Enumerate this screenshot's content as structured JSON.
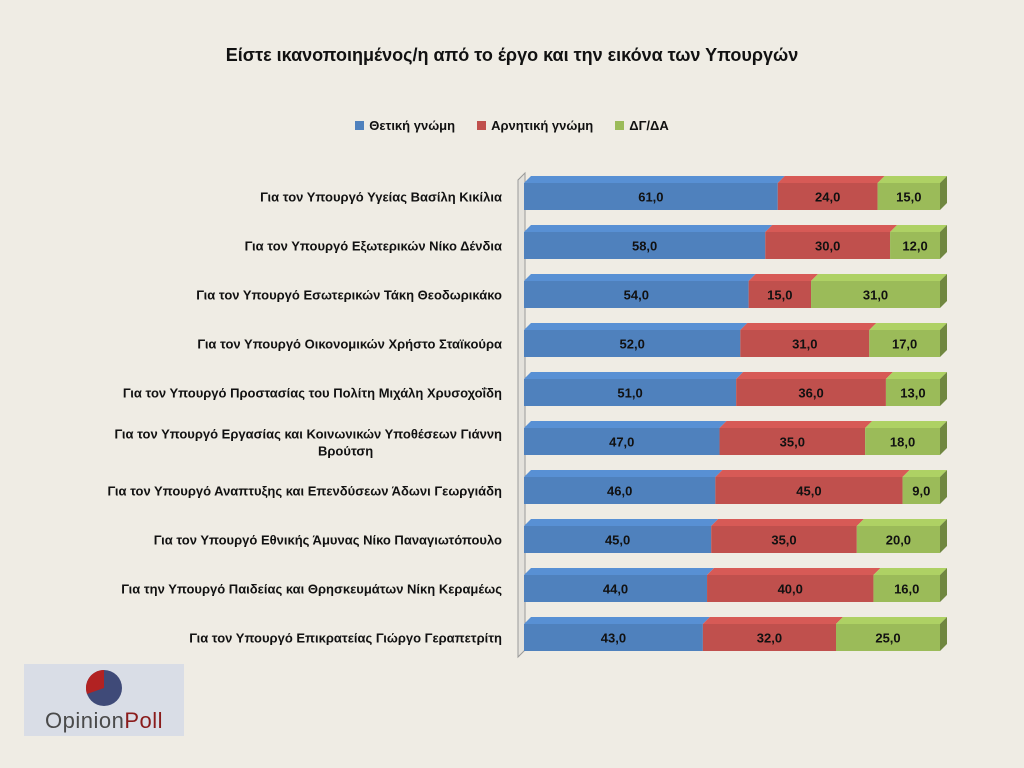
{
  "title": "Είστε ικανοποιημένος/η από το έργο και την εικόνα των Υπουργών",
  "logo": {
    "part1": "Opinion",
    "part2": "Poll"
  },
  "colors": {
    "positive": "#4f81bd",
    "negative": "#c0504d",
    "dkna": "#9bbb59",
    "background": "#efece4"
  },
  "chart_data": {
    "type": "bar",
    "orientation": "horizontal",
    "stacked": true,
    "percent_stacked": true,
    "title": "Είστε ικανοποιημένος/η από το έργο και την εικόνα των Υπουργών",
    "legend_position": "top",
    "categories": [
      "Για τον Υπουργό Υγείας Βασίλη Κικίλια",
      "Για τον Υπουργό Εξωτερικών Νίκο Δένδια",
      "Για τον Υπουργό Εσωτερικών Τάκη Θεοδωρικάκο",
      "Για τον Υπουργό Οικονομικών Χρήστο Σταϊκούρα",
      "Για τον Υπουργό Προστασίας του Πολίτη Μιχάλη Χρυσοχοΐδη",
      "Για τον Υπουργό Εργασίας και Κοινωνικών Υποθέσεων Γιάννη Βρούτση",
      "Για τον Υπουργό Αναπτυξης και Επενδύσεων Άδωνι Γεωργιάδη",
      "Για τον Υπουργό Εθνικής Άμυνας Νίκο Παναγιωτόπουλο",
      "Για την Υπουργό Παιδείας και Θρησκευμάτων Νίκη Κεραμέως",
      "Για τον Υπουργό Επικρατείας Γιώργο Γεραπετρίτη"
    ],
    "series": [
      {
        "name": "Θετική γνώμη",
        "color": "#4f81bd",
        "values": [
          61,
          58,
          54,
          52,
          51,
          47,
          46,
          45,
          44,
          43
        ],
        "labels": [
          "61,0",
          "58,0",
          "54,0",
          "52,0",
          "51,0",
          "47,0",
          "46,0",
          "45,0",
          "44,0",
          "43,0"
        ]
      },
      {
        "name": "Αρνητική γνώμη",
        "color": "#c0504d",
        "values": [
          24,
          30,
          15,
          31,
          36,
          35,
          45,
          35,
          40,
          32
        ],
        "labels": [
          "24,0",
          "30,0",
          "15,0",
          "31,0",
          "36,0",
          "35,0",
          "45,0",
          "35,0",
          "40,0",
          "32,0"
        ]
      },
      {
        "name": "ΔΓ/ΔΑ",
        "color": "#9bbb59",
        "values": [
          15,
          12,
          31,
          17,
          13,
          18,
          9,
          20,
          16,
          25
        ],
        "labels": [
          "15,0",
          "12,0",
          "31,0",
          "17,0",
          "13,0",
          "18,0",
          "9,0",
          "20,0",
          "16,0",
          "25,0"
        ]
      }
    ],
    "xlim": [
      0,
      100
    ],
    "grid": false
  }
}
